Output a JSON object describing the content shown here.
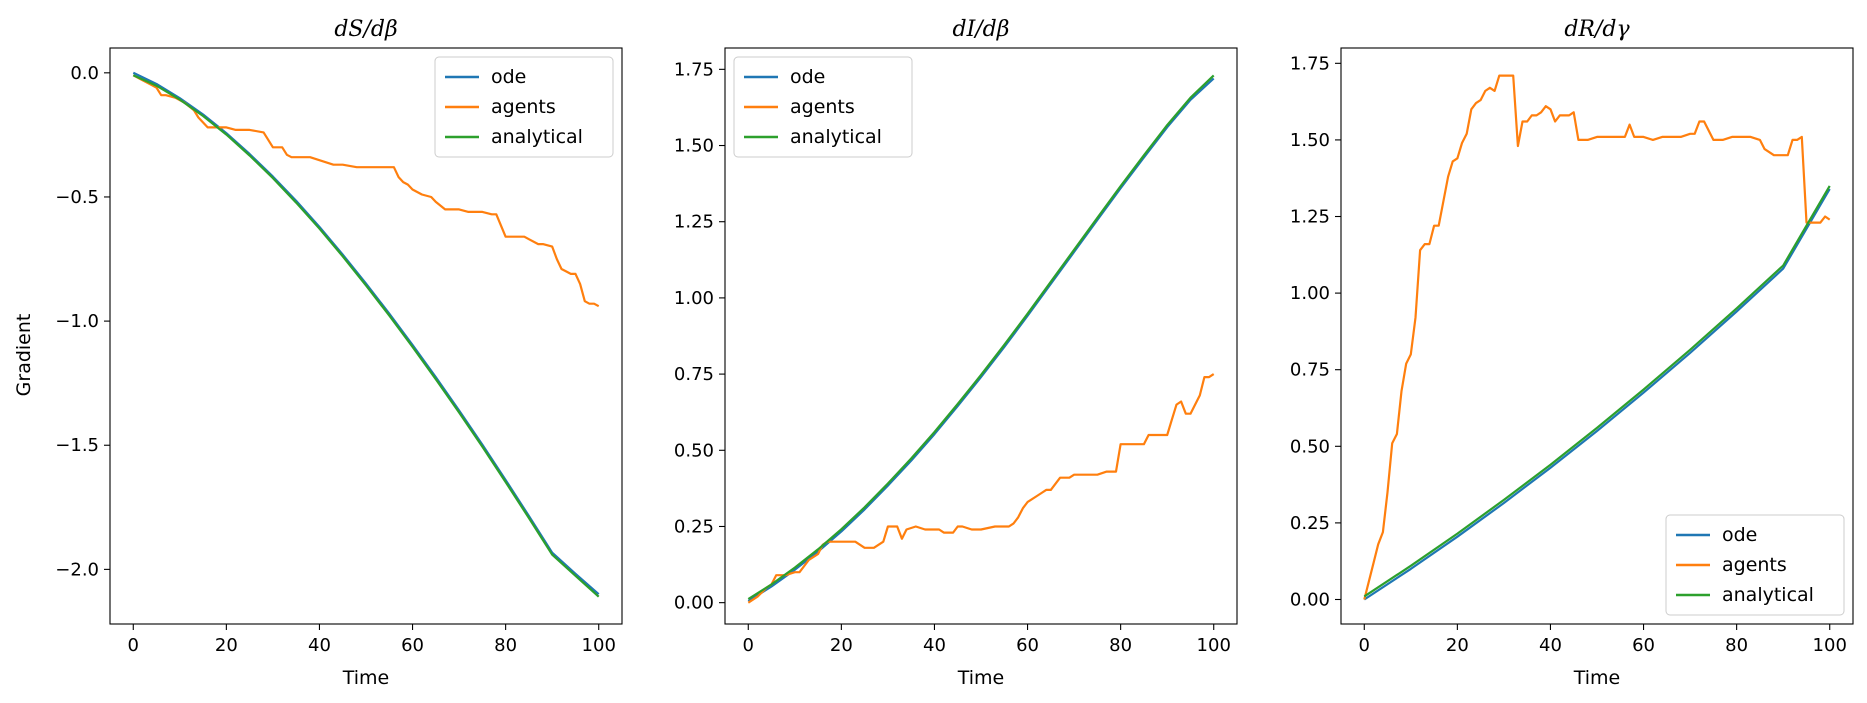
{
  "colors": {
    "ode": "#1f77b4",
    "agents": "#ff7f0e",
    "analytical": "#2ca02c"
  },
  "chart_data": [
    {
      "type": "line",
      "title": "dS/dβ",
      "xlabel": "Time",
      "ylabel": "Gradient",
      "xlim": [
        -5,
        105
      ],
      "ylim": [
        -2.22,
        0.1
      ],
      "xticks": [
        0,
        20,
        40,
        60,
        80,
        100
      ],
      "xtick_labels": [
        "0",
        "20",
        "40",
        "60",
        "80",
        "100"
      ],
      "yticks": [
        0.0,
        -0.5,
        -1.0,
        -1.5,
        -2.0
      ],
      "ytick_labels": [
        "0.0",
        "−0.5",
        "−1.0",
        "−1.5",
        "−2.0"
      ],
      "legend_position": "top-right",
      "series": [
        {
          "name": "ode",
          "color_key": "ode",
          "x": [
            0,
            5,
            10,
            15,
            20,
            25,
            30,
            35,
            40,
            45,
            50,
            55,
            60,
            65,
            70,
            75,
            80,
            85,
            90,
            95,
            100
          ],
          "y": [
            0,
            -0.045,
            -0.102,
            -0.168,
            -0.243,
            -0.327,
            -0.418,
            -0.516,
            -0.621,
            -0.732,
            -0.849,
            -0.97,
            -1.096,
            -1.226,
            -1.36,
            -1.498,
            -1.64,
            -1.785,
            -1.933,
            -2.018,
            -2.1
          ]
        },
        {
          "name": "agents",
          "color_key": "agents",
          "x": [
            0,
            2,
            4,
            5,
            6,
            7,
            9,
            11,
            13,
            14,
            15,
            16,
            18,
            20,
            22,
            25,
            28,
            29,
            30,
            32,
            33,
            34,
            35,
            38,
            43,
            44,
            45,
            48,
            50,
            52,
            56,
            57,
            58,
            59,
            60,
            61,
            62,
            64,
            65,
            67,
            70,
            72,
            75,
            77,
            78,
            80,
            82,
            84,
            85,
            87,
            88,
            90,
            91,
            92,
            93,
            94,
            95,
            96,
            97,
            98,
            99,
            100
          ],
          "y": [
            -0.01,
            -0.03,
            -0.05,
            -0.06,
            -0.09,
            -0.09,
            -0.1,
            -0.12,
            -0.15,
            -0.18,
            -0.2,
            -0.22,
            -0.22,
            -0.22,
            -0.23,
            -0.23,
            -0.24,
            -0.27,
            -0.3,
            -0.3,
            -0.33,
            -0.34,
            -0.34,
            -0.34,
            -0.37,
            -0.37,
            -0.37,
            -0.38,
            -0.38,
            -0.38,
            -0.38,
            -0.42,
            -0.44,
            -0.45,
            -0.47,
            -0.48,
            -0.49,
            -0.5,
            -0.52,
            -0.55,
            -0.55,
            -0.56,
            -0.56,
            -0.57,
            -0.57,
            -0.66,
            -0.66,
            -0.66,
            -0.67,
            -0.69,
            -0.69,
            -0.7,
            -0.75,
            -0.79,
            -0.8,
            -0.81,
            -0.81,
            -0.85,
            -0.92,
            -0.93,
            -0.93,
            -0.94
          ]
        },
        {
          "name": "analytical",
          "color_key": "analytical",
          "x": [
            0,
            5,
            10,
            15,
            20,
            25,
            30,
            35,
            40,
            45,
            50,
            55,
            60,
            65,
            70,
            75,
            80,
            85,
            90,
            95,
            100
          ],
          "y": [
            -0.01,
            -0.052,
            -0.108,
            -0.174,
            -0.249,
            -0.333,
            -0.424,
            -0.523,
            -0.628,
            -0.739,
            -0.856,
            -0.978,
            -1.104,
            -1.234,
            -1.368,
            -1.506,
            -1.648,
            -1.793,
            -1.941,
            -2.026,
            -2.11
          ]
        }
      ]
    },
    {
      "type": "line",
      "title": "dI/dβ",
      "xlabel": "Time",
      "ylabel": "",
      "xlim": [
        -5,
        105
      ],
      "ylim": [
        -0.07,
        1.82
      ],
      "xticks": [
        0,
        20,
        40,
        60,
        80,
        100
      ],
      "xtick_labels": [
        "0",
        "20",
        "40",
        "60",
        "80",
        "100"
      ],
      "yticks": [
        0.0,
        0.25,
        0.5,
        0.75,
        1.0,
        1.25,
        1.5,
        1.75
      ],
      "ytick_labels": [
        "0.00",
        "0.25",
        "0.50",
        "0.75",
        "1.00",
        "1.25",
        "1.50",
        "1.75"
      ],
      "legend_position": "top-left",
      "series": [
        {
          "name": "ode",
          "color_key": "ode",
          "x": [
            0,
            5,
            10,
            15,
            20,
            25,
            30,
            35,
            40,
            45,
            50,
            55,
            60,
            65,
            70,
            75,
            80,
            85,
            90,
            95,
            100
          ],
          "y": [
            0.005,
            0.053,
            0.108,
            0.168,
            0.234,
            0.306,
            0.384,
            0.466,
            0.553,
            0.645,
            0.74,
            0.839,
            0.941,
            1.046,
            1.151,
            1.256,
            1.36,
            1.461,
            1.56,
            1.65,
            1.72
          ]
        },
        {
          "name": "agents",
          "color_key": "agents",
          "x": [
            0,
            2,
            4,
            5,
            6,
            8,
            10,
            11,
            13,
            15,
            16,
            17,
            20,
            23,
            25,
            27,
            29,
            30,
            32,
            33,
            34,
            36,
            38,
            41,
            42,
            44,
            45,
            46,
            48,
            50,
            53,
            56,
            57,
            58,
            59,
            60,
            62,
            63,
            64,
            65,
            67,
            69,
            70,
            72,
            75,
            77,
            78,
            79,
            80,
            82,
            84,
            85,
            86,
            88,
            89,
            90,
            91,
            92,
            93,
            94,
            95,
            96,
            97,
            98,
            99,
            100
          ],
          "y": [
            0.0,
            0.02,
            0.05,
            0.06,
            0.09,
            0.09,
            0.1,
            0.1,
            0.14,
            0.16,
            0.19,
            0.2,
            0.2,
            0.2,
            0.18,
            0.18,
            0.2,
            0.25,
            0.25,
            0.21,
            0.24,
            0.25,
            0.24,
            0.24,
            0.23,
            0.23,
            0.25,
            0.25,
            0.24,
            0.24,
            0.25,
            0.25,
            0.26,
            0.28,
            0.31,
            0.33,
            0.35,
            0.36,
            0.37,
            0.37,
            0.41,
            0.41,
            0.42,
            0.42,
            0.42,
            0.43,
            0.43,
            0.43,
            0.52,
            0.52,
            0.52,
            0.52,
            0.55,
            0.55,
            0.55,
            0.55,
            0.6,
            0.65,
            0.66,
            0.62,
            0.62,
            0.65,
            0.68,
            0.74,
            0.74,
            0.75
          ]
        },
        {
          "name": "analytical",
          "color_key": "analytical",
          "x": [
            0,
            5,
            10,
            15,
            20,
            25,
            30,
            35,
            40,
            45,
            50,
            55,
            60,
            65,
            70,
            75,
            80,
            85,
            90,
            95,
            100
          ],
          "y": [
            0.012,
            0.06,
            0.115,
            0.175,
            0.241,
            0.313,
            0.391,
            0.473,
            0.56,
            0.652,
            0.747,
            0.846,
            0.948,
            1.053,
            1.158,
            1.263,
            1.367,
            1.468,
            1.567,
            1.657,
            1.73
          ]
        }
      ]
    },
    {
      "type": "line",
      "title": "dR/dγ",
      "xlabel": "Time",
      "ylabel": "",
      "xlim": [
        -5,
        105
      ],
      "ylim": [
        -0.08,
        1.8
      ],
      "xticks": [
        0,
        20,
        40,
        60,
        80,
        100
      ],
      "xtick_labels": [
        "0",
        "20",
        "40",
        "60",
        "80",
        "100"
      ],
      "yticks": [
        0.0,
        0.25,
        0.5,
        0.75,
        1.0,
        1.25,
        1.5,
        1.75
      ],
      "ytick_labels": [
        "0.00",
        "0.25",
        "0.50",
        "0.75",
        "1.00",
        "1.25",
        "1.50",
        "1.75"
      ],
      "legend_position": "bottom-right",
      "series": [
        {
          "name": "ode",
          "color_key": "ode",
          "x": [
            0,
            10,
            20,
            30,
            40,
            50,
            60,
            70,
            80,
            90,
            100
          ],
          "y": [
            0.0,
            0.1,
            0.205,
            0.315,
            0.43,
            0.55,
            0.675,
            0.805,
            0.94,
            1.08,
            1.34
          ]
        },
        {
          "name": "agents",
          "color_key": "agents",
          "x": [
            0,
            2,
            3,
            4,
            5,
            6,
            7,
            8,
            9,
            10,
            11,
            12,
            13,
            14,
            15,
            16,
            17,
            18,
            19,
            20,
            21,
            22,
            23,
            24,
            25,
            26,
            27,
            28,
            29,
            30,
            31,
            32,
            33,
            34,
            35,
            36,
            37,
            38,
            39,
            40,
            41,
            42,
            43,
            44,
            45,
            46,
            47,
            48,
            50,
            52,
            54,
            56,
            57,
            58,
            60,
            62,
            64,
            66,
            68,
            70,
            71,
            72,
            73,
            75,
            77,
            79,
            81,
            83,
            85,
            86,
            88,
            90,
            91,
            92,
            93,
            94,
            95,
            96,
            97,
            98,
            99,
            100
          ],
          "y": [
            0.0,
            0.12,
            0.18,
            0.22,
            0.35,
            0.51,
            0.54,
            0.68,
            0.77,
            0.8,
            0.92,
            1.14,
            1.16,
            1.16,
            1.22,
            1.22,
            1.3,
            1.38,
            1.43,
            1.44,
            1.49,
            1.52,
            1.6,
            1.62,
            1.63,
            1.66,
            1.67,
            1.66,
            1.71,
            1.71,
            1.71,
            1.71,
            1.48,
            1.56,
            1.56,
            1.58,
            1.58,
            1.59,
            1.61,
            1.6,
            1.56,
            1.58,
            1.58,
            1.58,
            1.59,
            1.5,
            1.5,
            1.5,
            1.51,
            1.51,
            1.51,
            1.51,
            1.55,
            1.51,
            1.51,
            1.5,
            1.51,
            1.51,
            1.51,
            1.52,
            1.52,
            1.56,
            1.56,
            1.5,
            1.5,
            1.51,
            1.51,
            1.51,
            1.5,
            1.47,
            1.45,
            1.45,
            1.45,
            1.5,
            1.5,
            1.51,
            1.23,
            1.23,
            1.23,
            1.23,
            1.25,
            1.24
          ]
        },
        {
          "name": "analytical",
          "color_key": "analytical",
          "x": [
            0,
            10,
            20,
            30,
            40,
            50,
            60,
            70,
            80,
            90,
            100
          ],
          "y": [
            0.01,
            0.11,
            0.215,
            0.325,
            0.44,
            0.56,
            0.685,
            0.815,
            0.95,
            1.09,
            1.35
          ]
        }
      ]
    }
  ]
}
